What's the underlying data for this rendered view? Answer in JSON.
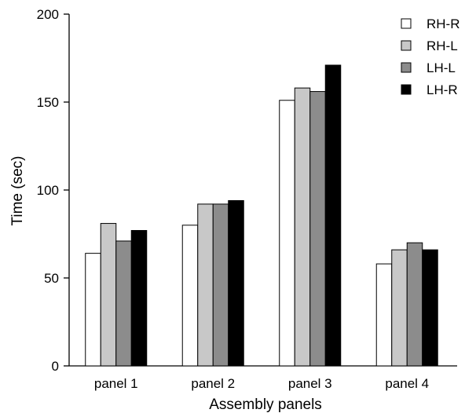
{
  "chart_data": {
    "type": "bar",
    "xlabel": "Assembly panels",
    "ylabel": "Time (sec)",
    "ylim": [
      0,
      200
    ],
    "yticks": [
      0,
      50,
      100,
      150,
      200
    ],
    "categories": [
      "panel 1",
      "panel 2",
      "panel 3",
      "panel 4"
    ],
    "series": [
      {
        "name": "RH-R",
        "color": "#ffffff",
        "values": [
          64,
          80,
          151,
          58
        ]
      },
      {
        "name": "RH-L",
        "color": "#c8c8c8",
        "values": [
          81,
          92,
          158,
          66
        ]
      },
      {
        "name": "LH-L",
        "color": "#8c8c8c",
        "values": [
          71,
          92,
          156,
          70
        ]
      },
      {
        "name": "LH-R",
        "color": "#000000",
        "values": [
          77,
          94,
          171,
          66
        ]
      }
    ],
    "legend_position": "top-right",
    "grid": false
  }
}
